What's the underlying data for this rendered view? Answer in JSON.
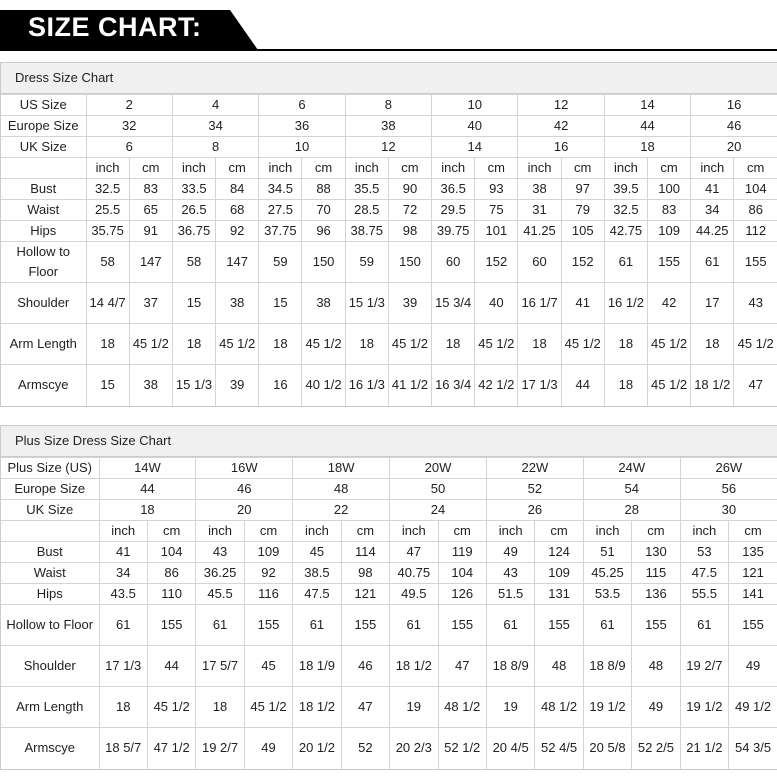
{
  "header": {
    "title": "SIZE CHART:"
  },
  "tables": [
    {
      "title": "Dress Size Chart",
      "size_rows": [
        {
          "label": "US Size",
          "values": [
            "2",
            "4",
            "6",
            "8",
            "10",
            "12",
            "14",
            "16"
          ]
        },
        {
          "label": "Europe Size",
          "values": [
            "32",
            "34",
            "36",
            "38",
            "40",
            "42",
            "44",
            "46"
          ]
        },
        {
          "label": "UK Size",
          "values": [
            "6",
            "8",
            "10",
            "12",
            "14",
            "16",
            "18",
            "20"
          ]
        }
      ],
      "units": [
        "inch",
        "cm"
      ],
      "measure_rows": [
        {
          "label": "Bust",
          "values": [
            "32.5",
            "83",
            "33.5",
            "84",
            "34.5",
            "88",
            "35.5",
            "90",
            "36.5",
            "93",
            "38",
            "97",
            "39.5",
            "100",
            "41",
            "104"
          ]
        },
        {
          "label": "Waist",
          "values": [
            "25.5",
            "65",
            "26.5",
            "68",
            "27.5",
            "70",
            "28.5",
            "72",
            "29.5",
            "75",
            "31",
            "79",
            "32.5",
            "83",
            "34",
            "86"
          ]
        },
        {
          "label": "Hips",
          "values": [
            "35.75",
            "91",
            "36.75",
            "92",
            "37.75",
            "96",
            "38.75",
            "98",
            "39.75",
            "101",
            "41.25",
            "105",
            "42.75",
            "109",
            "44.25",
            "112"
          ]
        },
        {
          "label": "Hollow to Floor",
          "values": [
            "58",
            "147",
            "58",
            "147",
            "59",
            "150",
            "59",
            "150",
            "60",
            "152",
            "60",
            "152",
            "61",
            "155",
            "61",
            "155"
          ]
        },
        {
          "label": "Shoulder",
          "values": [
            "14 4/7",
            "37",
            "15",
            "38",
            "15",
            "38",
            "15 1/3",
            "39",
            "15 3/4",
            "40",
            "16 1/7",
            "41",
            "16 1/2",
            "42",
            "17",
            "43"
          ]
        },
        {
          "label": "Arm Length",
          "values": [
            "18",
            "45 1/2",
            "18",
            "45 1/2",
            "18",
            "45 1/2",
            "18",
            "45 1/2",
            "18",
            "45 1/2",
            "18",
            "45 1/2",
            "18",
            "45 1/2",
            "18",
            "45 1/2"
          ]
        },
        {
          "label": "Armscye",
          "values": [
            "15",
            "38",
            "15 1/3",
            "39",
            "16",
            "40 1/2",
            "16 1/3",
            "41 1/2",
            "16 3/4",
            "42 1/2",
            "17 1/3",
            "44",
            "18",
            "45 1/2",
            "18 1/2",
            "47"
          ]
        }
      ]
    },
    {
      "title": "Plus Size Dress Size Chart",
      "size_rows": [
        {
          "label": "Plus Size (US)",
          "values": [
            "14W",
            "16W",
            "18W",
            "20W",
            "22W",
            "24W",
            "26W"
          ]
        },
        {
          "label": "Europe Size",
          "values": [
            "44",
            "46",
            "48",
            "50",
            "52",
            "54",
            "56"
          ]
        },
        {
          "label": "UK Size",
          "values": [
            "18",
            "20",
            "22",
            "24",
            "26",
            "28",
            "30"
          ]
        }
      ],
      "units": [
        "inch",
        "cm"
      ],
      "measure_rows": [
        {
          "label": "Bust",
          "values": [
            "41",
            "104",
            "43",
            "109",
            "45",
            "114",
            "47",
            "119",
            "49",
            "124",
            "51",
            "130",
            "53",
            "135"
          ]
        },
        {
          "label": "Waist",
          "values": [
            "34",
            "86",
            "36.25",
            "92",
            "38.5",
            "98",
            "40.75",
            "104",
            "43",
            "109",
            "45.25",
            "115",
            "47.5",
            "121"
          ]
        },
        {
          "label": "Hips",
          "values": [
            "43.5",
            "110",
            "45.5",
            "116",
            "47.5",
            "121",
            "49.5",
            "126",
            "51.5",
            "131",
            "53.5",
            "136",
            "55.5",
            "141"
          ]
        },
        {
          "label": "Hollow to Floor",
          "values": [
            "61",
            "155",
            "61",
            "155",
            "61",
            "155",
            "61",
            "155",
            "61",
            "155",
            "61",
            "155",
            "61",
            "155"
          ]
        },
        {
          "label": "Shoulder",
          "values": [
            "17 1/3",
            "44",
            "17 5/7",
            "45",
            "18 1/9",
            "46",
            "18 1/2",
            "47",
            "18 8/9",
            "48",
            "18 8/9",
            "48",
            "19 2/7",
            "49"
          ]
        },
        {
          "label": "Arm Length",
          "values": [
            "18",
            "45 1/2",
            "18",
            "45 1/2",
            "18 1/2",
            "47",
            "19",
            "48 1/2",
            "19",
            "48 1/2",
            "19 1/2",
            "49",
            "19 1/2",
            "49 1/2"
          ]
        },
        {
          "label": "Armscye",
          "values": [
            "18 5/7",
            "47 1/2",
            "19 2/7",
            "49",
            "20 1/2",
            "52",
            "20 2/3",
            "52 1/2",
            "20 4/5",
            "52 4/5",
            "20 5/8",
            "52 2/5",
            "21 1/2",
            "54 3/5"
          ]
        }
      ]
    }
  ]
}
